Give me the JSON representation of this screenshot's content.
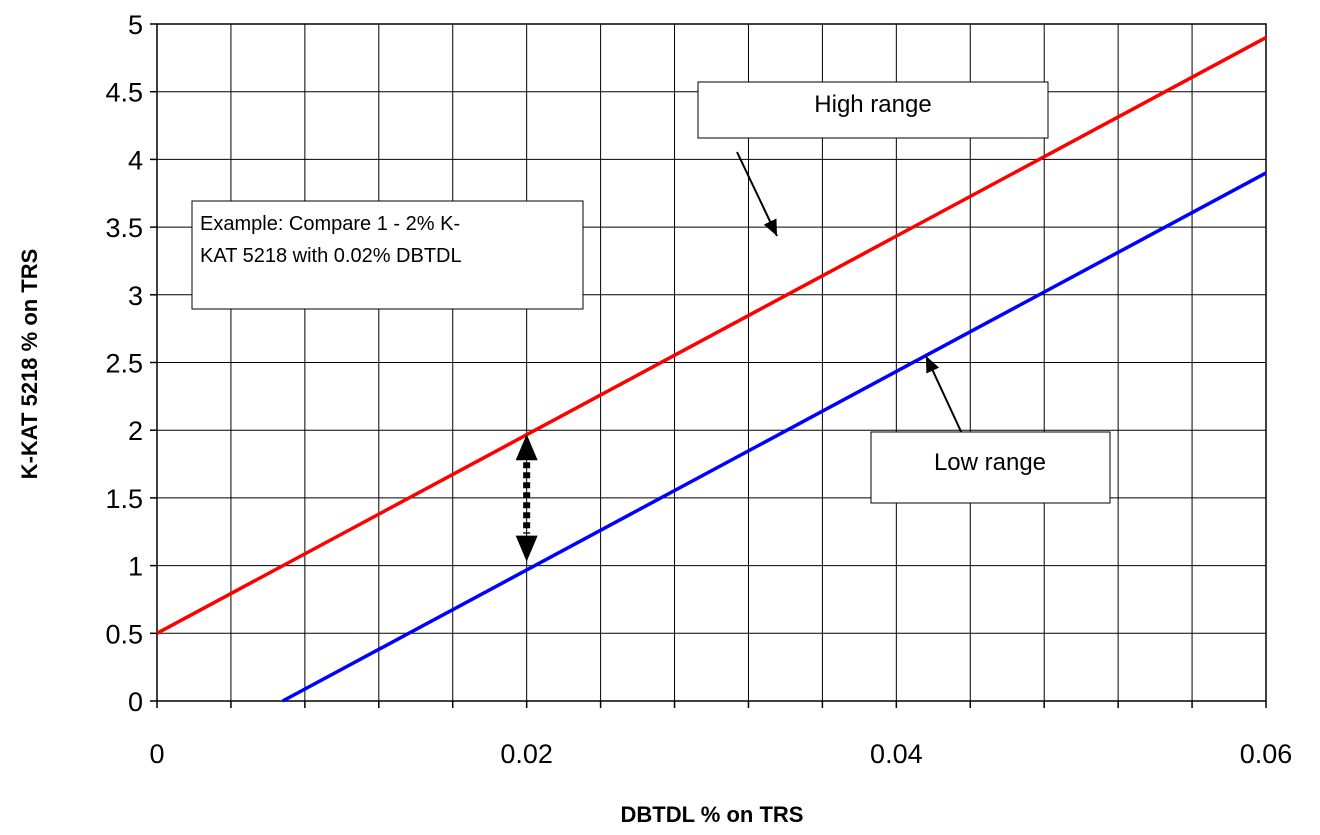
{
  "chart_data": {
    "type": "line",
    "title": "",
    "xlabel": "DBTDL % on TRS",
    "ylabel": "K-KAT 5218 % on TRS",
    "xlim": [
      0,
      0.06
    ],
    "ylim": [
      0,
      5
    ],
    "x_ticks": [
      "0",
      "0.02",
      "0.04",
      "0.06"
    ],
    "y_ticks": [
      "0",
      "0.5",
      "1",
      "1.5",
      "2",
      "2.5",
      "3",
      "3.5",
      "4",
      "4.5",
      "5"
    ],
    "grid": true,
    "series": [
      {
        "name": "High range",
        "color": "#ff0000",
        "x": [
          0,
          0.06
        ],
        "y": [
          0.5,
          4.9
        ]
      },
      {
        "name": "Low range",
        "color": "#0000ff",
        "x": [
          0.0068,
          0.06
        ],
        "y": [
          0,
          3.9
        ]
      }
    ],
    "annotations": {
      "high_label": "High range",
      "low_label": "Low range",
      "example_line1": "Example: Compare 1 - 2% K-",
      "example_line2": "KAT 5218 with 0.02% DBTDL",
      "compare_x": 0.02,
      "compare_y_range": [
        1,
        2
      ]
    }
  }
}
